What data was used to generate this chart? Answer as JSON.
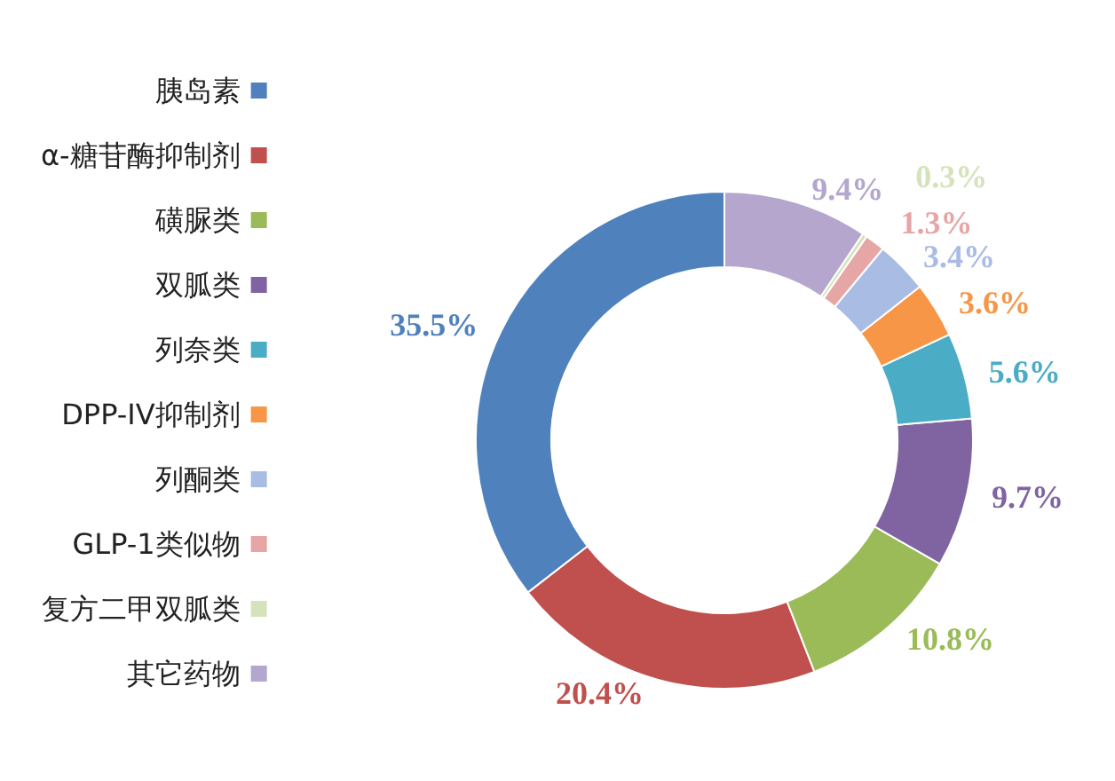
{
  "chart_data": {
    "type": "donut",
    "categories": [
      "胰岛素",
      "α-糖苷酶抑制剂",
      "磺脲类",
      "双胍类",
      "列奈类",
      "DPP-IV抑制剂",
      "列酮类",
      "GLP-1类似物",
      "复方二甲双胍类",
      "其它药物"
    ],
    "values": [
      35.5,
      20.4,
      10.8,
      9.7,
      5.6,
      3.6,
      3.4,
      1.3,
      0.3,
      9.4
    ],
    "value_labels": [
      "35.5%",
      "20.4%",
      "10.8%",
      "9.7%",
      "5.6%",
      "3.6%",
      "3.4%",
      "1.3%",
      "0.3%",
      "9.4%"
    ],
    "colors": [
      "#4f81bd",
      "#c0504d",
      "#9bbb59",
      "#8064a2",
      "#4bacc6",
      "#f79646",
      "#a9bce3",
      "#e6a6a6",
      "#d5e3bb",
      "#b4a6cc"
    ],
    "legend": "left"
  }
}
